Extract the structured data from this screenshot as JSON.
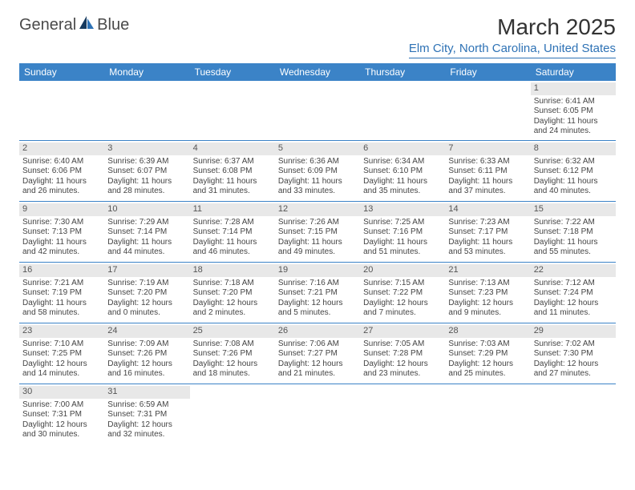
{
  "logo": {
    "text1": "General",
    "text2": "Blue"
  },
  "title": "March 2025",
  "location": "Elm City, North Carolina, United States",
  "colors": {
    "header_bg": "#3b83c7",
    "header_text": "#ffffff",
    "border": "#3b83c7",
    "daynum_bg": "#e8e8e8",
    "location_color": "#2e72b5",
    "logo_blue": "#2e72b5",
    "logo_dark": "#173a5e"
  },
  "day_headers": [
    "Sunday",
    "Monday",
    "Tuesday",
    "Wednesday",
    "Thursday",
    "Friday",
    "Saturday"
  ],
  "weeks": [
    [
      {
        "n": "",
        "l1": "",
        "l2": "",
        "l3": "",
        "l4": ""
      },
      {
        "n": "",
        "l1": "",
        "l2": "",
        "l3": "",
        "l4": ""
      },
      {
        "n": "",
        "l1": "",
        "l2": "",
        "l3": "",
        "l4": ""
      },
      {
        "n": "",
        "l1": "",
        "l2": "",
        "l3": "",
        "l4": ""
      },
      {
        "n": "",
        "l1": "",
        "l2": "",
        "l3": "",
        "l4": ""
      },
      {
        "n": "",
        "l1": "",
        "l2": "",
        "l3": "",
        "l4": ""
      },
      {
        "n": "1",
        "l1": "Sunrise: 6:41 AM",
        "l2": "Sunset: 6:05 PM",
        "l3": "Daylight: 11 hours",
        "l4": "and 24 minutes."
      }
    ],
    [
      {
        "n": "2",
        "l1": "Sunrise: 6:40 AM",
        "l2": "Sunset: 6:06 PM",
        "l3": "Daylight: 11 hours",
        "l4": "and 26 minutes."
      },
      {
        "n": "3",
        "l1": "Sunrise: 6:39 AM",
        "l2": "Sunset: 6:07 PM",
        "l3": "Daylight: 11 hours",
        "l4": "and 28 minutes."
      },
      {
        "n": "4",
        "l1": "Sunrise: 6:37 AM",
        "l2": "Sunset: 6:08 PM",
        "l3": "Daylight: 11 hours",
        "l4": "and 31 minutes."
      },
      {
        "n": "5",
        "l1": "Sunrise: 6:36 AM",
        "l2": "Sunset: 6:09 PM",
        "l3": "Daylight: 11 hours",
        "l4": "and 33 minutes."
      },
      {
        "n": "6",
        "l1": "Sunrise: 6:34 AM",
        "l2": "Sunset: 6:10 PM",
        "l3": "Daylight: 11 hours",
        "l4": "and 35 minutes."
      },
      {
        "n": "7",
        "l1": "Sunrise: 6:33 AM",
        "l2": "Sunset: 6:11 PM",
        "l3": "Daylight: 11 hours",
        "l4": "and 37 minutes."
      },
      {
        "n": "8",
        "l1": "Sunrise: 6:32 AM",
        "l2": "Sunset: 6:12 PM",
        "l3": "Daylight: 11 hours",
        "l4": "and 40 minutes."
      }
    ],
    [
      {
        "n": "9",
        "l1": "Sunrise: 7:30 AM",
        "l2": "Sunset: 7:13 PM",
        "l3": "Daylight: 11 hours",
        "l4": "and 42 minutes."
      },
      {
        "n": "10",
        "l1": "Sunrise: 7:29 AM",
        "l2": "Sunset: 7:14 PM",
        "l3": "Daylight: 11 hours",
        "l4": "and 44 minutes."
      },
      {
        "n": "11",
        "l1": "Sunrise: 7:28 AM",
        "l2": "Sunset: 7:14 PM",
        "l3": "Daylight: 11 hours",
        "l4": "and 46 minutes."
      },
      {
        "n": "12",
        "l1": "Sunrise: 7:26 AM",
        "l2": "Sunset: 7:15 PM",
        "l3": "Daylight: 11 hours",
        "l4": "and 49 minutes."
      },
      {
        "n": "13",
        "l1": "Sunrise: 7:25 AM",
        "l2": "Sunset: 7:16 PM",
        "l3": "Daylight: 11 hours",
        "l4": "and 51 minutes."
      },
      {
        "n": "14",
        "l1": "Sunrise: 7:23 AM",
        "l2": "Sunset: 7:17 PM",
        "l3": "Daylight: 11 hours",
        "l4": "and 53 minutes."
      },
      {
        "n": "15",
        "l1": "Sunrise: 7:22 AM",
        "l2": "Sunset: 7:18 PM",
        "l3": "Daylight: 11 hours",
        "l4": "and 55 minutes."
      }
    ],
    [
      {
        "n": "16",
        "l1": "Sunrise: 7:21 AM",
        "l2": "Sunset: 7:19 PM",
        "l3": "Daylight: 11 hours",
        "l4": "and 58 minutes."
      },
      {
        "n": "17",
        "l1": "Sunrise: 7:19 AM",
        "l2": "Sunset: 7:20 PM",
        "l3": "Daylight: 12 hours",
        "l4": "and 0 minutes."
      },
      {
        "n": "18",
        "l1": "Sunrise: 7:18 AM",
        "l2": "Sunset: 7:20 PM",
        "l3": "Daylight: 12 hours",
        "l4": "and 2 minutes."
      },
      {
        "n": "19",
        "l1": "Sunrise: 7:16 AM",
        "l2": "Sunset: 7:21 PM",
        "l3": "Daylight: 12 hours",
        "l4": "and 5 minutes."
      },
      {
        "n": "20",
        "l1": "Sunrise: 7:15 AM",
        "l2": "Sunset: 7:22 PM",
        "l3": "Daylight: 12 hours",
        "l4": "and 7 minutes."
      },
      {
        "n": "21",
        "l1": "Sunrise: 7:13 AM",
        "l2": "Sunset: 7:23 PM",
        "l3": "Daylight: 12 hours",
        "l4": "and 9 minutes."
      },
      {
        "n": "22",
        "l1": "Sunrise: 7:12 AM",
        "l2": "Sunset: 7:24 PM",
        "l3": "Daylight: 12 hours",
        "l4": "and 11 minutes."
      }
    ],
    [
      {
        "n": "23",
        "l1": "Sunrise: 7:10 AM",
        "l2": "Sunset: 7:25 PM",
        "l3": "Daylight: 12 hours",
        "l4": "and 14 minutes."
      },
      {
        "n": "24",
        "l1": "Sunrise: 7:09 AM",
        "l2": "Sunset: 7:26 PM",
        "l3": "Daylight: 12 hours",
        "l4": "and 16 minutes."
      },
      {
        "n": "25",
        "l1": "Sunrise: 7:08 AM",
        "l2": "Sunset: 7:26 PM",
        "l3": "Daylight: 12 hours",
        "l4": "and 18 minutes."
      },
      {
        "n": "26",
        "l1": "Sunrise: 7:06 AM",
        "l2": "Sunset: 7:27 PM",
        "l3": "Daylight: 12 hours",
        "l4": "and 21 minutes."
      },
      {
        "n": "27",
        "l1": "Sunrise: 7:05 AM",
        "l2": "Sunset: 7:28 PM",
        "l3": "Daylight: 12 hours",
        "l4": "and 23 minutes."
      },
      {
        "n": "28",
        "l1": "Sunrise: 7:03 AM",
        "l2": "Sunset: 7:29 PM",
        "l3": "Daylight: 12 hours",
        "l4": "and 25 minutes."
      },
      {
        "n": "29",
        "l1": "Sunrise: 7:02 AM",
        "l2": "Sunset: 7:30 PM",
        "l3": "Daylight: 12 hours",
        "l4": "and 27 minutes."
      }
    ],
    [
      {
        "n": "30",
        "l1": "Sunrise: 7:00 AM",
        "l2": "Sunset: 7:31 PM",
        "l3": "Daylight: 12 hours",
        "l4": "and 30 minutes."
      },
      {
        "n": "31",
        "l1": "Sunrise: 6:59 AM",
        "l2": "Sunset: 7:31 PM",
        "l3": "Daylight: 12 hours",
        "l4": "and 32 minutes."
      },
      {
        "n": "",
        "l1": "",
        "l2": "",
        "l3": "",
        "l4": ""
      },
      {
        "n": "",
        "l1": "",
        "l2": "",
        "l3": "",
        "l4": ""
      },
      {
        "n": "",
        "l1": "",
        "l2": "",
        "l3": "",
        "l4": ""
      },
      {
        "n": "",
        "l1": "",
        "l2": "",
        "l3": "",
        "l4": ""
      },
      {
        "n": "",
        "l1": "",
        "l2": "",
        "l3": "",
        "l4": ""
      }
    ]
  ]
}
